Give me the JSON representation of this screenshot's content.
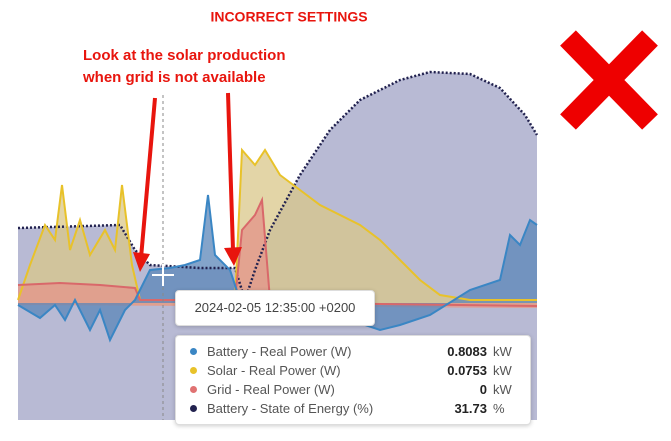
{
  "header": {
    "title": "INCORRECT SETTINGS"
  },
  "annotation": {
    "lines": [
      "Look at the solar production",
      "when grid is not available"
    ]
  },
  "tooltip": {
    "timestamp": "2024-02-05 12:35:00 +0200",
    "rows": [
      {
        "label": "Battery - Real Power (W)",
        "value": 0.8083,
        "unit": "kW",
        "color": "#3a86c4"
      },
      {
        "label": "Solar - Real Power (W)",
        "value": 0.0753,
        "unit": "kW",
        "color": "#e8c22a"
      },
      {
        "label": "Grid - Real Power (W)",
        "value": 0,
        "unit": "kW",
        "color": "#e07272"
      },
      {
        "label": "Battery - State of Energy (%)",
        "value": 31.73,
        "unit": "%",
        "color": "#22224f"
      }
    ]
  }
}
